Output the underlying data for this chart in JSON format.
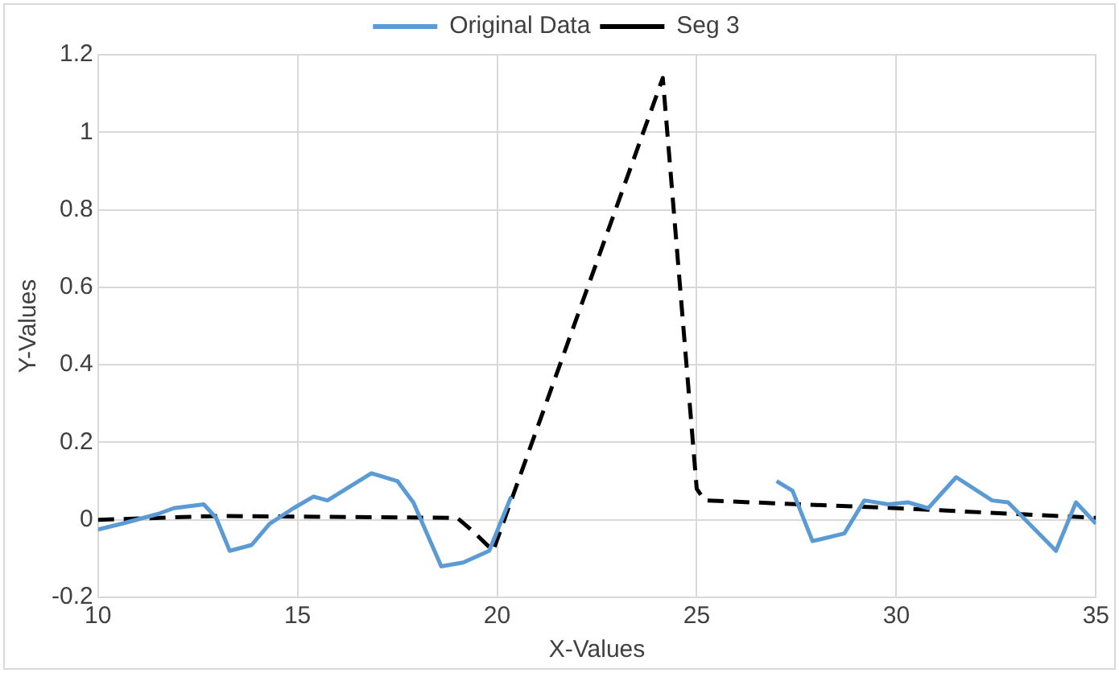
{
  "chart_data": {
    "type": "line",
    "xlabel": "X-Values",
    "ylabel": "Y-Values",
    "xlim": [
      10,
      35
    ],
    "xticks": [
      10,
      15,
      20,
      25,
      30,
      35
    ],
    "ylim": [
      -0.2,
      1.2
    ],
    "yticks": [
      -0.2,
      0,
      0.2,
      0.4,
      0.6,
      0.8,
      1,
      1.2
    ],
    "grid": true,
    "legend": "top",
    "marker": "none",
    "series": [
      {
        "name": "Original Data",
        "color": "#5b9bd5",
        "line_style": "solid",
        "x": [
          10,
          10.6,
          11.5,
          11.9,
          12.65,
          12.96,
          13.3,
          13.85,
          14.3,
          14.9,
          15.4,
          15.75,
          16.85,
          17.5,
          17.9,
          18.6,
          19.15,
          19.8,
          20.35,
          24,
          27,
          27.4,
          27.9,
          28.7,
          29.2,
          29.8,
          30.3,
          30.8,
          31.5,
          32.4,
          32.8,
          34,
          34.5,
          35
        ],
        "values": [
          -0.025,
          -0.01,
          0.015,
          0.03,
          0.04,
          0.005,
          -0.08,
          -0.065,
          -0.01,
          0.03,
          0.06,
          0.05,
          0.12,
          0.1,
          0.045,
          -0.12,
          -0.11,
          -0.08,
          0.06,
          null,
          0.1,
          0.075,
          -0.055,
          -0.035,
          0.05,
          0.04,
          0.045,
          0.03,
          0.11,
          0.05,
          0.045,
          -0.08,
          0.045,
          -0.01
        ]
      },
      {
        "name": "Seg 3",
        "color": "#000000",
        "line_style": "dashed",
        "x": [
          10,
          13,
          19,
          19.4,
          19.9,
          24.15,
          25,
          25.2,
          30,
          35
        ],
        "values": [
          0,
          0.01,
          0.005,
          -0.03,
          -0.08,
          1.14,
          0.08,
          0.05,
          0.03,
          0.005
        ]
      }
    ]
  }
}
